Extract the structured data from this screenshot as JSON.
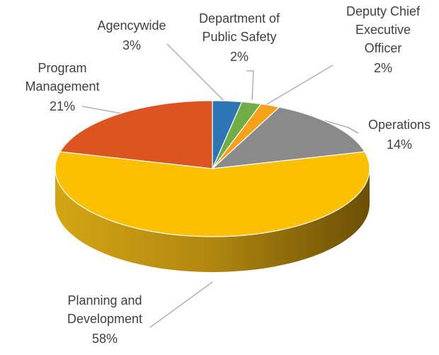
{
  "chart_data": {
    "type": "pie3d",
    "categories": [
      "Agencywide",
      "Department of Public Safety",
      "Deputy Chief Executive Officer",
      "Operations",
      "Planning and Development",
      "Program Management"
    ],
    "values": [
      3,
      2,
      2,
      14,
      58,
      21
    ],
    "value_labels": [
      "3%",
      "2%",
      "2%",
      "14%",
      "58%",
      "21%"
    ],
    "colors": [
      "#2e75b6",
      "#70ad47",
      "#f5a21a",
      "#8a8a8a",
      "#fdc000",
      "#dc5420"
    ]
  }
}
